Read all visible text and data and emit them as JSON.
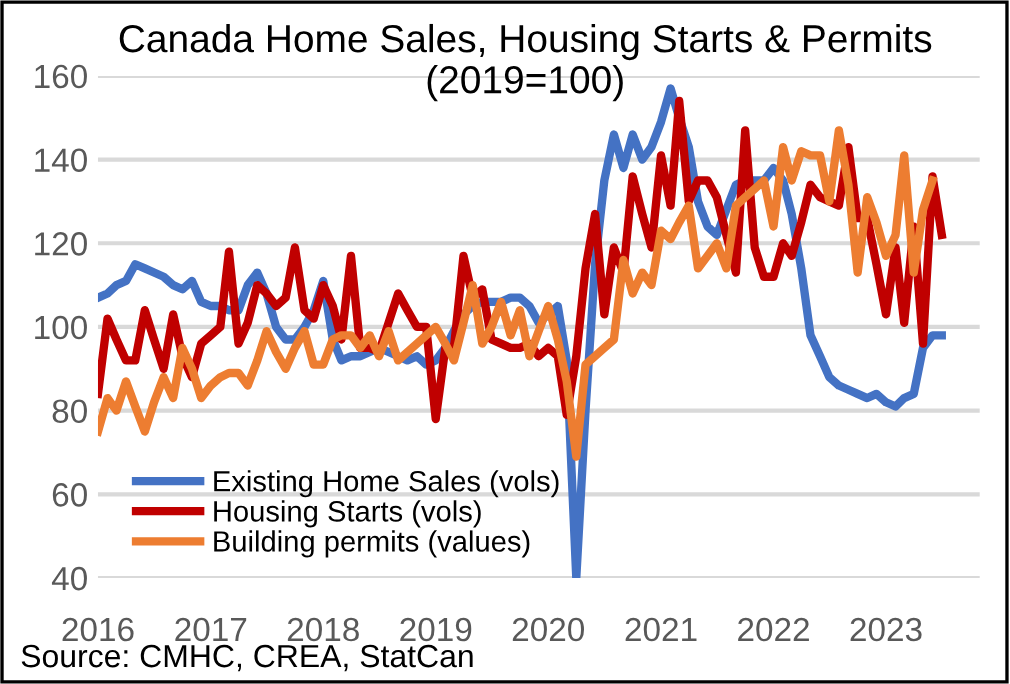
{
  "chart_data": {
    "type": "line",
    "title": "Canada Home Sales, Housing Starts & Permits",
    "subtitle": "(2019=100)",
    "annotations": [
      "Source: CMHC, CREA, StatCan"
    ],
    "x": [
      "2016-01",
      "2016-02",
      "2016-03",
      "2016-04",
      "2016-05",
      "2016-06",
      "2016-07",
      "2016-08",
      "2016-09",
      "2016-10",
      "2016-11",
      "2016-12",
      "2017-01",
      "2017-02",
      "2017-03",
      "2017-04",
      "2017-05",
      "2017-06",
      "2017-07",
      "2017-08",
      "2017-09",
      "2017-10",
      "2017-11",
      "2017-12",
      "2018-01",
      "2018-02",
      "2018-03",
      "2018-04",
      "2018-05",
      "2018-06",
      "2018-07",
      "2018-08",
      "2018-09",
      "2018-10",
      "2018-11",
      "2018-12",
      "2019-01",
      "2019-02",
      "2019-03",
      "2019-04",
      "2019-05",
      "2019-06",
      "2019-07",
      "2019-08",
      "2019-09",
      "2019-10",
      "2019-11",
      "2019-12",
      "2020-01",
      "2020-02",
      "2020-03",
      "2020-04",
      "2020-05",
      "2020-06",
      "2020-07",
      "2020-08",
      "2020-09",
      "2020-10",
      "2020-11",
      "2020-12",
      "2021-01",
      "2021-02",
      "2021-03",
      "2021-04",
      "2021-05",
      "2021-06",
      "2021-07",
      "2021-08",
      "2021-09",
      "2021-10",
      "2021-11",
      "2021-12",
      "2022-01",
      "2022-02",
      "2022-03",
      "2022-04",
      "2022-05",
      "2022-06",
      "2022-07",
      "2022-08",
      "2022-09",
      "2022-10",
      "2022-11",
      "2022-12",
      "2023-01",
      "2023-02",
      "2023-03",
      "2023-04",
      "2023-05",
      "2023-06",
      "2023-07"
    ],
    "series": [
      {
        "name": "Existing Home Sales (vols)",
        "color": "#4472c4",
        "values": [
          107,
          108,
          110,
          111,
          115,
          114,
          113,
          112,
          110,
          109,
          111,
          106,
          105,
          105,
          104,
          104,
          110,
          113,
          108,
          100,
          97,
          97,
          100,
          104,
          111,
          97,
          92,
          93,
          93,
          94,
          95,
          94,
          93,
          92,
          93,
          91,
          92,
          95,
          99,
          103,
          105,
          106,
          106,
          106,
          107,
          107,
          105,
          101,
          103,
          105,
          92,
          40,
          80,
          115,
          135,
          146,
          138,
          146,
          140,
          143,
          149,
          157,
          150,
          143,
          130,
          124,
          122,
          128,
          134,
          135,
          135,
          135,
          138,
          135,
          127,
          114,
          98,
          93,
          88,
          86,
          85,
          84,
          83,
          84,
          82,
          81,
          83,
          84,
          95,
          98,
          98
        ]
      },
      {
        "name": "Housing Starts (vols)",
        "color": "#c00000",
        "values": [
          84,
          102,
          97,
          92,
          92,
          104,
          97,
          90,
          103,
          93,
          88,
          96,
          98,
          100,
          118,
          96,
          101,
          110,
          108,
          105,
          107,
          119,
          104,
          102,
          110,
          105,
          97,
          117,
          95,
          95,
          94,
          101,
          108,
          104,
          100,
          100,
          78,
          95,
          95,
          117,
          107,
          109,
          97,
          96,
          95,
          95,
          96,
          93,
          95,
          93,
          79,
          93,
          114,
          127,
          103,
          119,
          113,
          136,
          127,
          119,
          141,
          129,
          154,
          130,
          135,
          135,
          131,
          122,
          113,
          147,
          119,
          112,
          112,
          120,
          117,
          125,
          134,
          131,
          130,
          129,
          143,
          126,
          126,
          115,
          103,
          119,
          101,
          124,
          96,
          136,
          122
        ]
      },
      {
        "name": "Building permits (values)",
        "color": "#ed7d31",
        "values": [
          75,
          83,
          80,
          87,
          81,
          75,
          82,
          88,
          83,
          95,
          90,
          83,
          86,
          88,
          89,
          89,
          86,
          92,
          99,
          94,
          90,
          95,
          99,
          91,
          91,
          97,
          98,
          98,
          95,
          98,
          93,
          99,
          92,
          94,
          96,
          98,
          100,
          96,
          92,
          101,
          110,
          96,
          100,
          106,
          98,
          104,
          93,
          99,
          105,
          97,
          87,
          69,
          91,
          93,
          95,
          97,
          116,
          108,
          113,
          110,
          123,
          121,
          125,
          129,
          114,
          117,
          120,
          114,
          129,
          131,
          133,
          135,
          124,
          143,
          135,
          142,
          141,
          141,
          130,
          147,
          134,
          113,
          131,
          125,
          117,
          122,
          141,
          113,
          128,
          135,
          null
        ]
      }
    ],
    "xlim": [
      "2016-01",
      "2023-11"
    ],
    "xticks": [
      {
        "value": "2016-01",
        "label": "2016"
      },
      {
        "value": "2017-01",
        "label": "2017"
      },
      {
        "value": "2018-01",
        "label": "2018"
      },
      {
        "value": "2019-01",
        "label": "2019"
      },
      {
        "value": "2020-01",
        "label": "2020"
      },
      {
        "value": "2021-01",
        "label": "2021"
      },
      {
        "value": "2022-01",
        "label": "2022"
      },
      {
        "value": "2023-01",
        "label": "2023"
      }
    ],
    "ylim": [
      40,
      160
    ],
    "yticks": [
      40,
      60,
      80,
      100,
      120,
      140,
      160
    ],
    "grid": "y",
    "legend": "bottom left",
    "marker": "none",
    "line_style": "solid"
  }
}
